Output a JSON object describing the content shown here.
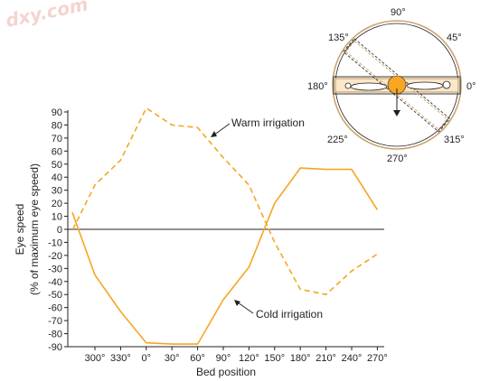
{
  "watermark": "dxy.com",
  "chart_data": {
    "type": "line",
    "title": "",
    "xlabel": "Bed position",
    "ylabel_line1": "Eye speed",
    "ylabel_line2": "(% of maximum eye speed)",
    "x_ticks": [
      "300°",
      "330°",
      "0°",
      "30°",
      "60°",
      "90°",
      "120°",
      "150°",
      "180°",
      "210°",
      "240°",
      "270°"
    ],
    "ylim": [
      -90,
      90
    ],
    "yticks": [
      -90,
      -80,
      -70,
      -60,
      -50,
      -40,
      -30,
      -20,
      -10,
      0,
      10,
      20,
      30,
      40,
      50,
      60,
      70,
      80,
      90
    ],
    "grid": false,
    "zero_line": true,
    "series": [
      {
        "name": "Warm irrigation",
        "style": "dashed",
        "color": "#f5a623",
        "x_index": [
          -1.1,
          0,
          1,
          2,
          3,
          4,
          5,
          6,
          7,
          8,
          9,
          10,
          11
        ],
        "values": [
          0,
          34,
          53,
          93,
          80,
          78,
          55,
          34,
          -10,
          -46,
          -50,
          -32,
          -19
        ]
      },
      {
        "name": "Cold irrigation",
        "style": "solid",
        "color": "#f5a623",
        "x_index": [
          -1.2,
          0,
          1,
          2,
          3,
          4,
          5,
          6,
          7,
          8,
          9,
          10,
          11
        ],
        "values": [
          13,
          -35,
          -63,
          -87,
          -88,
          -88,
          -54,
          -29,
          20,
          47,
          46,
          46,
          15
        ]
      }
    ],
    "annotations": [
      {
        "text": "Warm irrigation",
        "series": "Warm irrigation"
      },
      {
        "text": "Cold irrigation",
        "series": "Cold irrigation"
      }
    ]
  },
  "inset": {
    "description_labels": [
      "90°",
      "45°",
      "0°",
      "315°",
      "270°",
      "225°",
      "180°",
      "135°"
    ],
    "ring_color": "#c8a46e",
    "head_color": "#f5a623"
  }
}
